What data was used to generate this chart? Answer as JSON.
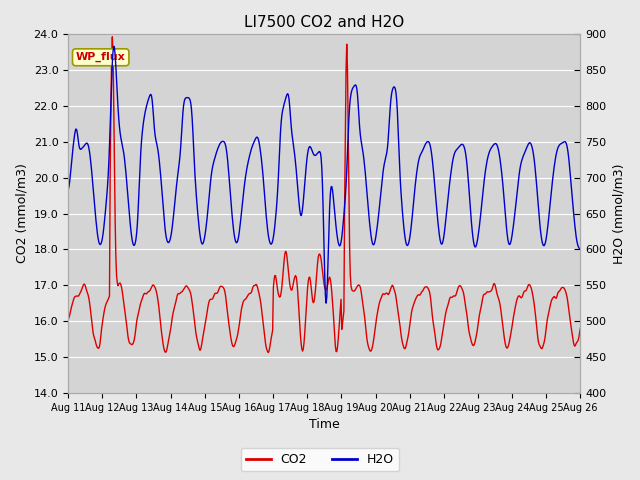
{
  "title": "LI7500 CO2 and H2O",
  "xlabel": "Time",
  "ylabel_left": "CO2 (mmol/m3)",
  "ylabel_right": "H2O (mmol/m3)",
  "ylim_left": [
    14.0,
    24.0
  ],
  "ylim_right": [
    400,
    900
  ],
  "xtick_labels": [
    "Aug 11",
    "Aug 12",
    "Aug 13",
    "Aug 14",
    "Aug 15",
    "Aug 16",
    "Aug 17",
    "Aug 18",
    "Aug 19",
    "Aug 20",
    "Aug 21",
    "Aug 22",
    "Aug 23",
    "Aug 24",
    "Aug 25",
    "Aug 26"
  ],
  "co2_color": "#dd0000",
  "h2o_color": "#0000cc",
  "background_color": "#e8e8e8",
  "plot_bg_color": "#d4d4d4",
  "wp_flux_color": "#cc0000",
  "wp_flux_bg": "#ffffcc",
  "n_points": 720,
  "yticks_co2": [
    14.0,
    15.0,
    16.0,
    17.0,
    18.0,
    19.0,
    20.0,
    21.0,
    22.0,
    23.0,
    24.0
  ],
  "yticks_h2o": [
    400,
    450,
    500,
    550,
    600,
    650,
    700,
    750,
    800,
    850,
    900
  ]
}
